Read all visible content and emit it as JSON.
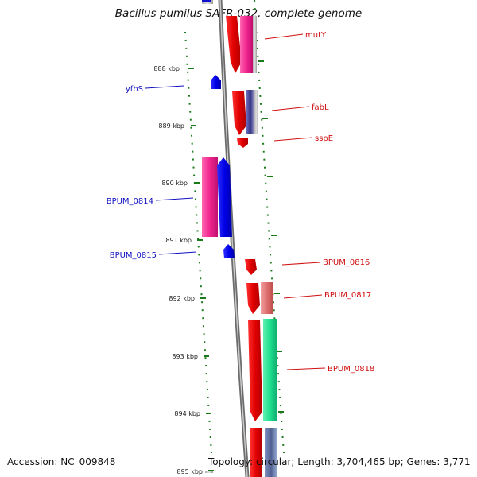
{
  "title": "Bacillus pumilus SAFR-032, complete genome",
  "footer": {
    "accession": "Accession: NC_009848",
    "topology": "Topology: circular; Length: 3,704,465 bp; Genes: 3,771"
  },
  "colors": {
    "backbone": "#8a8a8a",
    "tick": "#1a7a1a",
    "forward_label": "#d01010",
    "reverse_label": "#1010c0"
  },
  "ticks": [
    "888 kbp",
    "889 kbp",
    "890 kbp",
    "891 kbp",
    "892 kbp",
    "893 kbp",
    "894 kbp",
    "895 kbp"
  ],
  "genes": [
    {
      "name": "mutY",
      "strand": "forward"
    },
    {
      "name": "yfhS",
      "strand": "reverse"
    },
    {
      "name": "fabL",
      "strand": "forward"
    },
    {
      "name": "sspE",
      "strand": "forward"
    },
    {
      "name": "BPUM_0814",
      "strand": "reverse"
    },
    {
      "name": "BPUM_0815",
      "strand": "reverse"
    },
    {
      "name": "BPUM_0816",
      "strand": "forward"
    },
    {
      "name": "BPUM_0817",
      "strand": "forward"
    },
    {
      "name": "BPUM_0818",
      "strand": "forward"
    }
  ]
}
